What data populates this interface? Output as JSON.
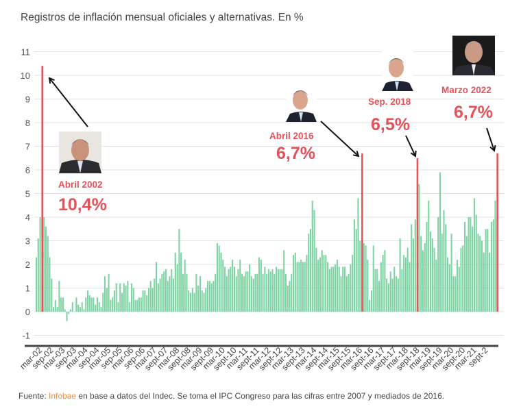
{
  "chart_data": {
    "type": "bar",
    "title": "Registros de inflación mensual oficiales y alternativas. En %",
    "xlabel": "",
    "ylabel": "",
    "ylim": [
      -1,
      11
    ],
    "y_ticks": [
      -1,
      0,
      1,
      2,
      3,
      4,
      5,
      6,
      7,
      8,
      9,
      10,
      11
    ],
    "grid": true,
    "x_tick_labels": [
      "mar-02",
      "sep-02",
      "mar-03",
      "sep-03",
      "mar-04",
      "sep-04",
      "mar-05",
      "sep-05",
      "mar-06",
      "sep-06",
      "mar-07",
      "sept-07",
      "mar-08",
      "sept-08",
      "mar-09",
      "sept-09",
      "mar-10",
      "sept-10",
      "mar-11",
      "sept-11",
      "mar-12",
      "sept-12",
      "mar-13",
      "sept-13",
      "mar-14",
      "sept-14",
      "mar-15",
      "sept-15",
      "mar-16",
      "sept-16",
      "mar-17",
      "sept-17",
      "mar-18",
      "sept-18",
      "mar-19",
      "sept-19",
      "mar-20",
      "sept-20",
      "mar-21",
      "sept-2"
    ],
    "values": [
      2.3,
      3.1,
      4.0,
      10.4,
      4.0,
      3.6,
      3.2,
      2.3,
      1.4,
      0.2,
      0.5,
      0.2,
      1.3,
      0.6,
      0.6,
      0.1,
      -0.4,
      -0.1,
      0.1,
      0.4,
      0.0,
      0.6,
      0.3,
      0.2,
      0.4,
      0.1,
      0.6,
      0.9,
      0.7,
      0.6,
      0.6,
      0.3,
      0.6,
      0.4,
      0.2,
      0.8,
      1.5,
      1.0,
      1.6,
      0.5,
      0.6,
      0.9,
      1.2,
      0.4,
      1.2,
      0.8,
      1.2,
      1.1,
      1.3,
      0.4,
      1.2,
      1.0,
      0.5,
      0.5,
      0.6,
      0.6,
      0.9,
      0.9,
      0.7,
      1.0,
      1.3,
      1.0,
      1.4,
      2.1,
      1.2,
      1.4,
      1.6,
      1.7,
      1.8,
      1.3,
      1.5,
      1.8,
      1.4,
      2.5,
      2.0,
      3.5,
      2.5,
      1.6,
      2.2,
      1.6,
      0.9,
      0.8,
      1.0,
      0.8,
      1.6,
      1.1,
      1.5,
      0.9,
      0.8,
      1.0,
      1.3,
      1.3,
      1.2,
      1.3,
      1.6,
      2.9,
      2.8,
      2.5,
      2.2,
      1.9,
      1.5,
      1.8,
      1.9,
      2.2,
      1.9,
      1.5,
      1.8,
      2.2,
      1.6,
      1.5,
      1.7,
      1.7,
      2.0,
      1.5,
      1.4,
      1.6,
      1.6,
      2.3,
      2.2,
      1.6,
      1.9,
      1.6,
      1.8,
      1.7,
      1.8,
      1.6,
      1.9,
      1.8,
      1.8,
      1.8,
      2.6,
      1.6,
      1.1,
      1.3,
      1.6,
      2.4,
      2.5,
      2.1,
      2.1,
      2.2,
      2.1,
      2.1,
      2.4,
      3.3,
      3.5,
      4.7,
      4.3,
      2.7,
      2.2,
      2.3,
      2.6,
      2.4,
      2.4,
      2.1,
      1.8,
      1.9,
      1.9,
      2.0,
      2.2,
      1.9,
      1.5,
      1.9,
      1.9,
      1.5,
      1.6,
      2.0,
      2.4,
      3.9,
      3.5,
      4.8,
      3.0,
      6.7,
      2.9,
      2.8,
      2.2,
      0.5,
      0.9,
      2.8,
      1.8,
      1.8,
      1.3,
      2.1,
      2.4,
      2.6,
      1.4,
      1.2,
      1.7,
      1.4,
      1.9,
      1.5,
      1.4,
      3.1,
      1.8,
      2.4,
      2.3,
      2.7,
      2.1,
      3.7,
      3.1,
      3.9,
      6.5,
      5.4,
      3.2,
      2.6,
      2.9,
      3.8,
      4.7,
      3.4,
      3.1,
      2.7,
      2.2,
      4.0,
      5.9,
      3.3,
      4.3,
      3.7,
      2.3,
      2.0,
      3.3,
      1.5,
      1.5,
      2.2,
      1.9,
      2.7,
      2.8,
      3.8,
      3.2,
      4.0,
      4.0,
      3.6,
      4.8,
      4.1,
      3.3,
      3.2,
      3.0,
      2.5,
      3.5,
      3.5,
      2.5,
      3.8,
      3.9,
      4.7,
      6.7
    ],
    "highlighted": [
      {
        "index": 3,
        "date_label": "Abril 2002",
        "value_label": "10,4%"
      },
      {
        "index": 171,
        "date_label": "Abril 2016",
        "value_label": "6,7%"
      },
      {
        "index": 200,
        "date_label": "Sep. 2018",
        "value_label": "6,5%"
      },
      {
        "index": 242,
        "date_label": "Marzo 2022",
        "value_label": "6,7%"
      }
    ],
    "colors": {
      "bar": "#7dd3a2",
      "highlight": "#e5525a",
      "axis": "#444444",
      "grid": "#e2e2e2"
    }
  },
  "footer": {
    "prefix": "Fuente: ",
    "source": "Infobae",
    "suffix": " en base a datos del Indec. Se toma el IPC Congreso para las cifras entre 2007 y mediados de 2016."
  }
}
